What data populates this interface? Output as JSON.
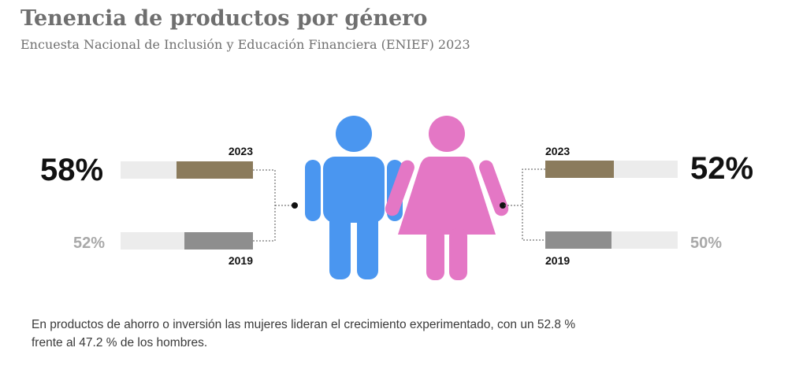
{
  "header": {
    "title": "Tenencia de productos por género",
    "subtitle": "Encuesta Nacional de Inclusión y Educación Financiera (ENIEF) 2023"
  },
  "chart_data": {
    "type": "bar",
    "title": "Tenencia de productos por género",
    "subtitle": "Encuesta Nacional de Inclusión y Educación Financiera (ENIEF) 2023",
    "max": 100,
    "groups": [
      {
        "id": "hombres",
        "icon": "man-icon",
        "icon_color": "#4a96f0",
        "bars": [
          {
            "year": "2023",
            "value": 58,
            "label": "58%",
            "color": "#8b7b5c"
          },
          {
            "year": "2019",
            "value": 52,
            "label": "52%",
            "color": "#8e8e8e"
          }
        ]
      },
      {
        "id": "mujeres",
        "icon": "woman-icon",
        "icon_color": "#e477c5",
        "bars": [
          {
            "year": "2023",
            "value": 52,
            "label": "52%",
            "color": "#8b7b5c"
          },
          {
            "year": "2019",
            "value": 50,
            "label": "50%",
            "color": "#8e8e8e"
          }
        ]
      }
    ]
  },
  "footnote": "En productos de ahorro o inversión las mujeres lideran el crecimiento experimentado, con un 52.8 % frente al 47.2 % de los hombres."
}
